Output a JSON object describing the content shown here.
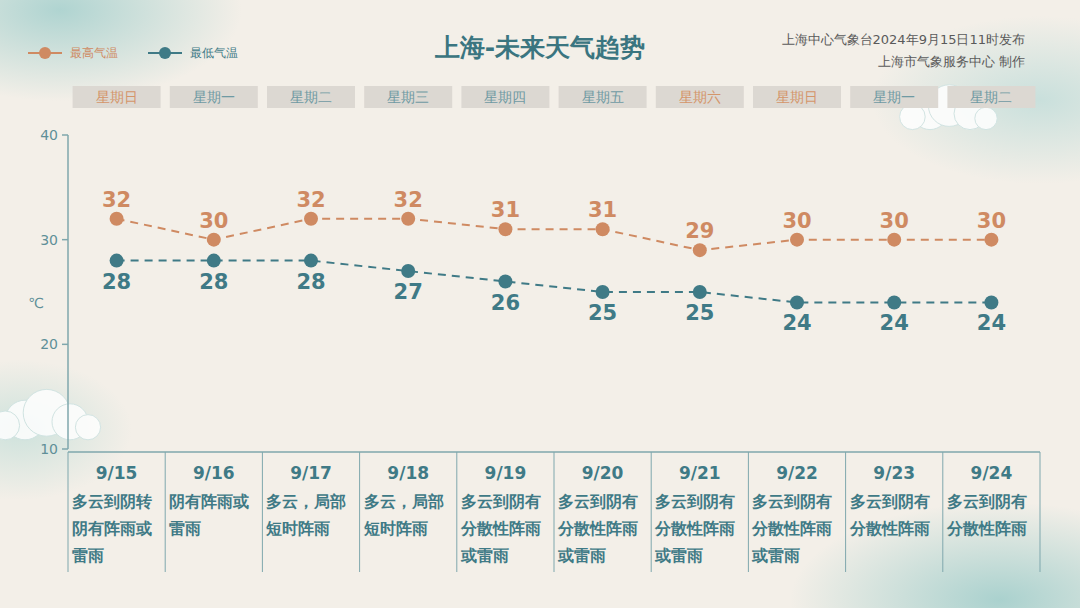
{
  "chart_data": {
    "type": "line",
    "title": "上海-未来天气趋势",
    "annotations": [
      "上海中心气象台2024年9月15日11时发布",
      "上海市气象服务中心 制作"
    ],
    "y_label": "℃",
    "categories": [
      "9/15",
      "9/16",
      "9/17",
      "9/18",
      "9/19",
      "9/20",
      "9/21",
      "9/22",
      "9/23",
      "9/24"
    ],
    "weekdays": [
      {
        "label": "星期日",
        "color": "#d4956a"
      },
      {
        "label": "星期一",
        "color": "#6f9aa3"
      },
      {
        "label": "星期二",
        "color": "#6f9aa3"
      },
      {
        "label": "星期三",
        "color": "#6f9aa3"
      },
      {
        "label": "星期四",
        "color": "#6f9aa3"
      },
      {
        "label": "星期五",
        "color": "#6f9aa3"
      },
      {
        "label": "星期六",
        "color": "#d4956a"
      },
      {
        "label": "星期日",
        "color": "#d4956a"
      },
      {
        "label": "星期一",
        "color": "#6f9aa3"
      },
      {
        "label": "星期二",
        "color": "#6f9aa3"
      }
    ],
    "weather": [
      "多云到阴转阴有阵雨或雷雨",
      "阴有阵雨或雷雨",
      "多云，局部短时阵雨",
      "多云，局部短时阵雨",
      "多云到阴有分散性阵雨或雷雨",
      "多云到阴有分散性阵雨或雷雨",
      "多云到阴有分散性阵雨或雷雨",
      "多云到阴有分散性阵雨或雷雨",
      "多云到阴有分散性阵雨",
      "多云到阴有分散性阵雨"
    ],
    "series": [
      {
        "name": "最高气温",
        "color": "#cf8a62",
        "marker": "circle",
        "line_style": "dashed",
        "values": [
          32,
          30,
          32,
          32,
          31,
          31,
          29,
          30,
          30,
          30
        ]
      },
      {
        "name": "最低气温",
        "color": "#3f7a86",
        "marker": "circle",
        "line_style": "dashed",
        "values": [
          28,
          28,
          28,
          27,
          26,
          25,
          25,
          24,
          24,
          24
        ]
      }
    ],
    "ylim": [
      10,
      40
    ],
    "yticks": [
      10,
      20,
      30,
      40
    ],
    "grid": false,
    "legend": "top-left",
    "data_labels": true
  }
}
